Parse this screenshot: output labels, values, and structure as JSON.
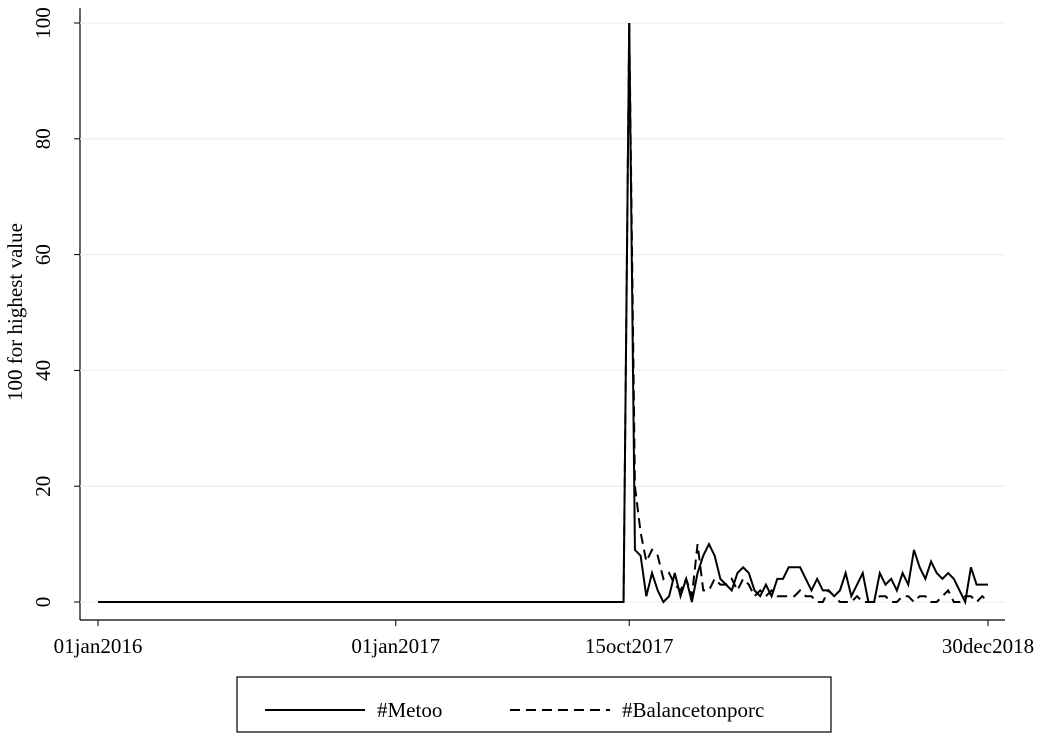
{
  "chart_data": {
    "type": "line",
    "y_label": "100 for highest value",
    "x": [
      "2016-01-01",
      "2017-10-08",
      "2017-10-15",
      "2017-10-22",
      "2017-10-29",
      "2017-11-05",
      "2017-11-12",
      "2017-11-19",
      "2017-11-26",
      "2017-12-03",
      "2017-12-10",
      "2017-12-17",
      "2017-12-24",
      "2017-12-31",
      "2018-01-07",
      "2018-01-14",
      "2018-01-21",
      "2018-01-28",
      "2018-02-04",
      "2018-02-11",
      "2018-02-18",
      "2018-02-25",
      "2018-03-04",
      "2018-03-11",
      "2018-03-18",
      "2018-03-25",
      "2018-04-01",
      "2018-04-08",
      "2018-04-15",
      "2018-04-22",
      "2018-04-29",
      "2018-05-06",
      "2018-05-13",
      "2018-05-20",
      "2018-05-27",
      "2018-06-03",
      "2018-06-10",
      "2018-06-17",
      "2018-06-24",
      "2018-07-01",
      "2018-07-08",
      "2018-07-15",
      "2018-07-22",
      "2018-07-29",
      "2018-08-05",
      "2018-08-12",
      "2018-08-19",
      "2018-08-26",
      "2018-09-02",
      "2018-09-09",
      "2018-09-16",
      "2018-09-23",
      "2018-09-30",
      "2018-10-07",
      "2018-10-14",
      "2018-10-21",
      "2018-10-28",
      "2018-11-04",
      "2018-11-11",
      "2018-11-18",
      "2018-11-25",
      "2018-12-02",
      "2018-12-09",
      "2018-12-16",
      "2018-12-23",
      "2018-12-30"
    ],
    "series": [
      {
        "name": "#Metoo",
        "color": "#000000",
        "dash": "solid",
        "values": [
          0,
          0,
          100,
          9,
          8,
          1,
          5,
          2,
          0,
          1,
          5,
          1,
          4,
          0,
          5,
          8,
          10,
          8,
          4,
          3,
          2,
          5,
          6,
          5,
          2,
          1,
          3,
          1,
          4,
          4,
          6,
          6,
          6,
          4,
          2,
          4,
          2,
          2,
          1,
          2,
          5,
          1,
          3,
          5,
          0,
          0,
          5,
          3,
          4,
          2,
          5,
          3,
          9,
          6,
          4,
          7,
          5,
          4,
          5,
          4,
          2,
          0,
          6,
          3,
          3,
          3
        ]
      },
      {
        "name": "#Balancetonporc",
        "color": "#000000",
        "dash": "dashed",
        "values": [
          0,
          0,
          100,
          20,
          12,
          7,
          9,
          8,
          4,
          5,
          3,
          2,
          4,
          1,
          10,
          2,
          2,
          4,
          3,
          3,
          4,
          2,
          4,
          3,
          1,
          2,
          1,
          2,
          1,
          1,
          1,
          1,
          2,
          1,
          1,
          0,
          0,
          2,
          1,
          0,
          0,
          0,
          1,
          0,
          0,
          0,
          1,
          1,
          0,
          0,
          1,
          1,
          0,
          1,
          1,
          0,
          0,
          1,
          2,
          0,
          0,
          1,
          1,
          0,
          1,
          0
        ]
      }
    ],
    "xlim": [
      "2016-01-01",
      "2018-12-30"
    ],
    "xticks": [
      {
        "value": "2016-01-01",
        "label": "01jan2016"
      },
      {
        "value": "2017-01-01",
        "label": "01jan2017"
      },
      {
        "value": "2017-10-15",
        "label": "15oct2017"
      },
      {
        "value": "2018-12-30",
        "label": "30dec2018"
      }
    ],
    "ylim": [
      0,
      100
    ],
    "yticks": [
      0,
      20,
      40,
      60,
      80,
      100
    ],
    "grid": true,
    "legend": "bottom"
  }
}
